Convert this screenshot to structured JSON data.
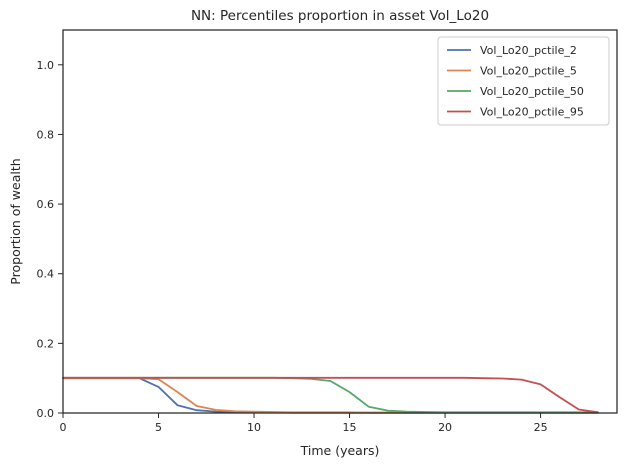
{
  "chart_data": {
    "type": "line",
    "title": "NN: Percentiles proportion in asset Vol_Lo20",
    "xlabel": "Time (years)",
    "ylabel": "Proportion of wealth",
    "xlim": [
      0,
      29
    ],
    "ylim": [
      0,
      1.1
    ],
    "xticks": [
      0,
      5,
      10,
      15,
      20,
      25
    ],
    "yticks": [
      0.0,
      0.2,
      0.4,
      0.6,
      0.8,
      1.0
    ],
    "xtick_labels": [
      "0",
      "5",
      "10",
      "15",
      "20",
      "25"
    ],
    "ytick_labels": [
      "0.0",
      "0.2",
      "0.4",
      "0.6",
      "0.8",
      "1.0"
    ],
    "grid": false,
    "legend_position": "top-right",
    "x": [
      0,
      1,
      2,
      3,
      4,
      5,
      6,
      7,
      8,
      9,
      10,
      11,
      12,
      13,
      14,
      15,
      16,
      17,
      18,
      19,
      20,
      21,
      22,
      23,
      24,
      25,
      26,
      27,
      28
    ],
    "series": [
      {
        "name": "Vol_Lo20_pctile_2",
        "color": "#4c72b0",
        "values": [
          0.1,
          0.1,
          0.1,
          0.1,
          0.1,
          0.075,
          0.022,
          0.008,
          0.004,
          0.003,
          0.002,
          0.002,
          0.001,
          0.001,
          0.001,
          0.001,
          0.001,
          0.001,
          0.001,
          0.001,
          0.001,
          0.001,
          0.001,
          0.001,
          0.001,
          0.001,
          0.001,
          0.001,
          0.001
        ]
      },
      {
        "name": "Vol_Lo20_pctile_5",
        "color": "#dd8452",
        "values": [
          0.1,
          0.1,
          0.1,
          0.1,
          0.1,
          0.097,
          0.06,
          0.02,
          0.009,
          0.005,
          0.004,
          0.003,
          0.002,
          0.002,
          0.002,
          0.002,
          0.001,
          0.001,
          0.001,
          0.001,
          0.001,
          0.001,
          0.001,
          0.001,
          0.001,
          0.001,
          0.001,
          0.001,
          0.001
        ]
      },
      {
        "name": "Vol_Lo20_pctile_50",
        "color": "#55a868",
        "values": [
          0.101,
          0.101,
          0.101,
          0.101,
          0.101,
          0.101,
          0.101,
          0.101,
          0.101,
          0.101,
          0.101,
          0.101,
          0.1,
          0.098,
          0.092,
          0.06,
          0.018,
          0.007,
          0.004,
          0.003,
          0.002,
          0.002,
          0.002,
          0.002,
          0.002,
          0.002,
          0.002,
          0.002,
          0.002
        ]
      },
      {
        "name": "Vol_Lo20_pctile_95",
        "color": "#c44e52",
        "values": [
          0.101,
          0.101,
          0.101,
          0.101,
          0.101,
          0.101,
          0.101,
          0.101,
          0.101,
          0.101,
          0.101,
          0.101,
          0.101,
          0.101,
          0.101,
          0.101,
          0.101,
          0.101,
          0.101,
          0.101,
          0.101,
          0.101,
          0.1,
          0.099,
          0.096,
          0.082,
          0.045,
          0.01,
          0.002
        ]
      }
    ]
  }
}
